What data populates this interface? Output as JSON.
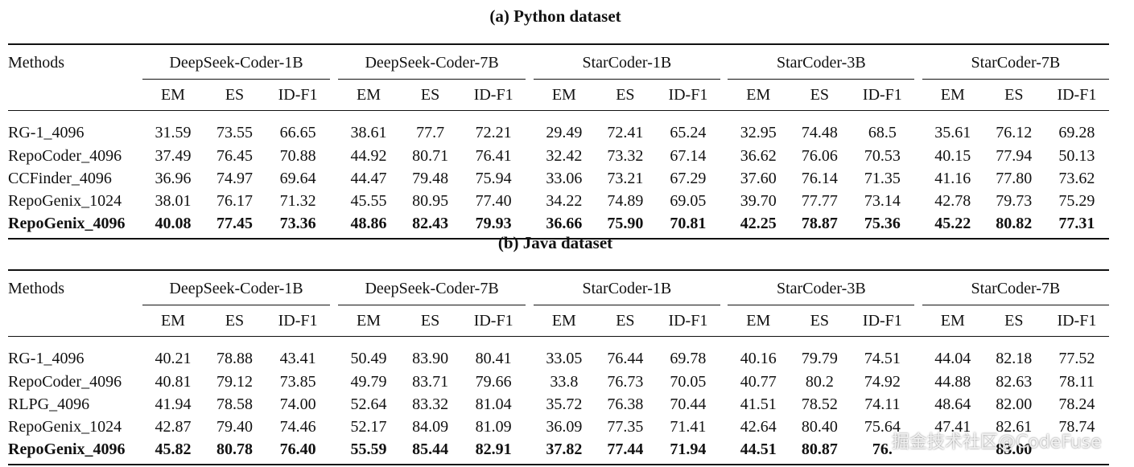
{
  "captions": {
    "a": "(a) Python dataset",
    "b": "(b) Java dataset"
  },
  "header": {
    "methods": "Methods",
    "models": [
      "DeepSeek-Coder-1B",
      "DeepSeek-Coder-7B",
      "StarCoder-1B",
      "StarCoder-3B",
      "StarCoder-7B"
    ],
    "metrics": [
      "EM",
      "ES",
      "ID-F1"
    ]
  },
  "python": {
    "rows": [
      {
        "method": "RG-1_4096",
        "values": [
          "31.59",
          "73.55",
          "66.65",
          "38.61",
          "77.7",
          "72.21",
          "29.49",
          "72.41",
          "65.24",
          "32.95",
          "74.48",
          "68.5",
          "35.61",
          "76.12",
          "69.28"
        ]
      },
      {
        "method": "RepoCoder_4096",
        "values": [
          "37.49",
          "76.45",
          "70.88",
          "44.92",
          "80.71",
          "76.41",
          "32.42",
          "73.32",
          "67.14",
          "36.62",
          "76.06",
          "70.53",
          "40.15",
          "77.94",
          "50.13"
        ]
      },
      {
        "method": "CCFinder_4096",
        "values": [
          "36.96",
          "74.97",
          "69.64",
          "44.47",
          "79.48",
          "75.94",
          "33.06",
          "73.21",
          "67.29",
          "37.60",
          "76.14",
          "71.35",
          "41.16",
          "77.80",
          "73.62"
        ]
      },
      {
        "method": "RepoGenix_1024",
        "values": [
          "38.01",
          "76.17",
          "71.32",
          "45.55",
          "80.95",
          "77.40",
          "34.22",
          "74.89",
          "69.05",
          "39.70",
          "77.77",
          "73.14",
          "42.78",
          "79.73",
          "75.29"
        ]
      },
      {
        "method": "RepoGenix_4096",
        "values": [
          "40.08",
          "77.45",
          "73.36",
          "48.86",
          "82.43",
          "79.93",
          "36.66",
          "75.90",
          "70.81",
          "42.25",
          "78.87",
          "75.36",
          "45.22",
          "80.82",
          "77.31"
        ]
      }
    ]
  },
  "java": {
    "rows": [
      {
        "method": "RG-1_4096",
        "values": [
          "40.21",
          "78.88",
          "43.41",
          "50.49",
          "83.90",
          "80.41",
          "33.05",
          "76.44",
          "69.78",
          "40.16",
          "79.79",
          "74.51",
          "44.04",
          "82.18",
          "77.52"
        ]
      },
      {
        "method": "RepoCoder_4096",
        "values": [
          "40.81",
          "79.12",
          "73.85",
          "49.79",
          "83.71",
          "79.66",
          "33.8",
          "76.73",
          "70.05",
          "40.77",
          "80.2",
          "74.92",
          "44.88",
          "82.63",
          "78.11"
        ]
      },
      {
        "method": "RLPG_4096",
        "values": [
          "41.94",
          "78.58",
          "74.00",
          "52.64",
          "83.32",
          "81.04",
          "35.72",
          "76.38",
          "70.44",
          "41.51",
          "78.52",
          "74.11",
          "48.64",
          "82.00",
          "78.24"
        ]
      },
      {
        "method": "RepoGenix_1024",
        "values": [
          "42.87",
          "79.40",
          "74.46",
          "52.17",
          "84.09",
          "81.09",
          "36.09",
          "77.35",
          "71.41",
          "42.64",
          "80.40",
          "75.64",
          "47.41",
          "82.61",
          "78.74"
        ]
      },
      {
        "method": "RepoGenix_4096",
        "values": [
          "45.82",
          "80.78",
          "76.40",
          "55.59",
          "85.44",
          "82.91",
          "37.82",
          "77.44",
          "71.94",
          "44.51",
          "80.87",
          "76.",
          "",
          "83.00",
          ""
        ]
      }
    ]
  },
  "watermark": "掘金技术社区@CodeFuse"
}
